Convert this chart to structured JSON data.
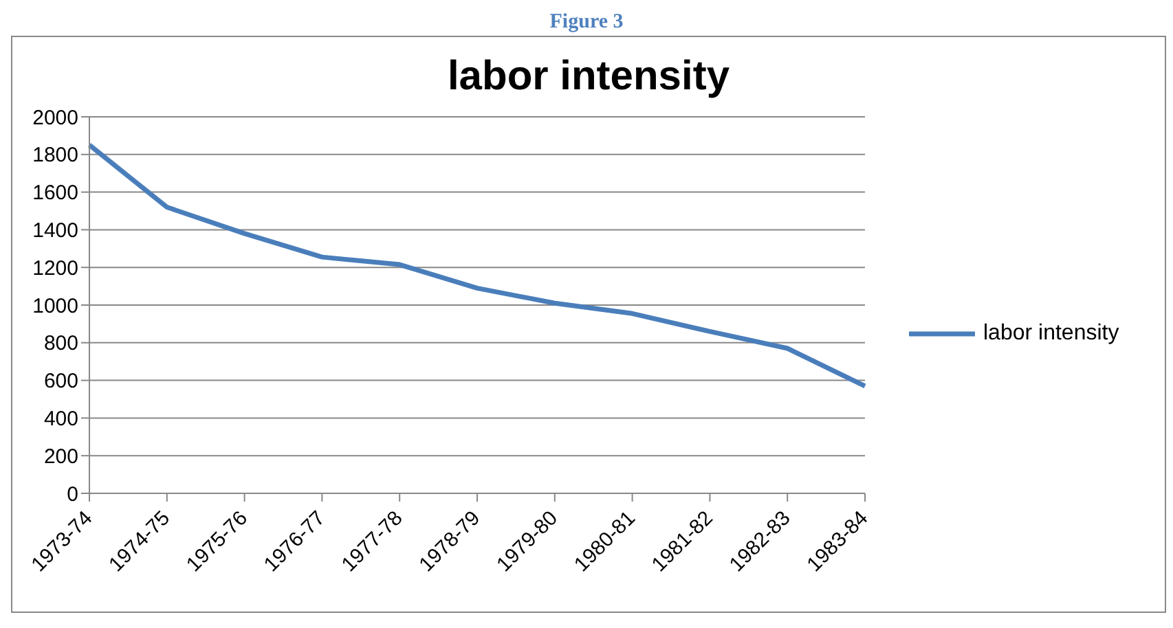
{
  "chart_data": {
    "type": "line",
    "title": "labor intensity",
    "annotations": [
      "Figure 3"
    ],
    "categories": [
      "1973-74",
      "1974-75",
      "1975-76",
      "1976-77",
      "1977-78",
      "1978-79",
      "1979-80",
      "1980-81",
      "1981-82",
      "1982-83",
      "1983-84"
    ],
    "series": [
      {
        "name": "labor intensity",
        "color": "#4a7ebb",
        "values": [
          1850,
          1520,
          1380,
          1255,
          1215,
          1090,
          1010,
          955,
          860,
          770,
          570
        ]
      }
    ],
    "ylim": [
      0,
      2000
    ],
    "yticks": [
      0,
      200,
      400,
      600,
      800,
      1000,
      1200,
      1400,
      1600,
      1800,
      2000
    ],
    "grid": "y",
    "legend": "right",
    "marker": "none",
    "line_style": "solid"
  }
}
